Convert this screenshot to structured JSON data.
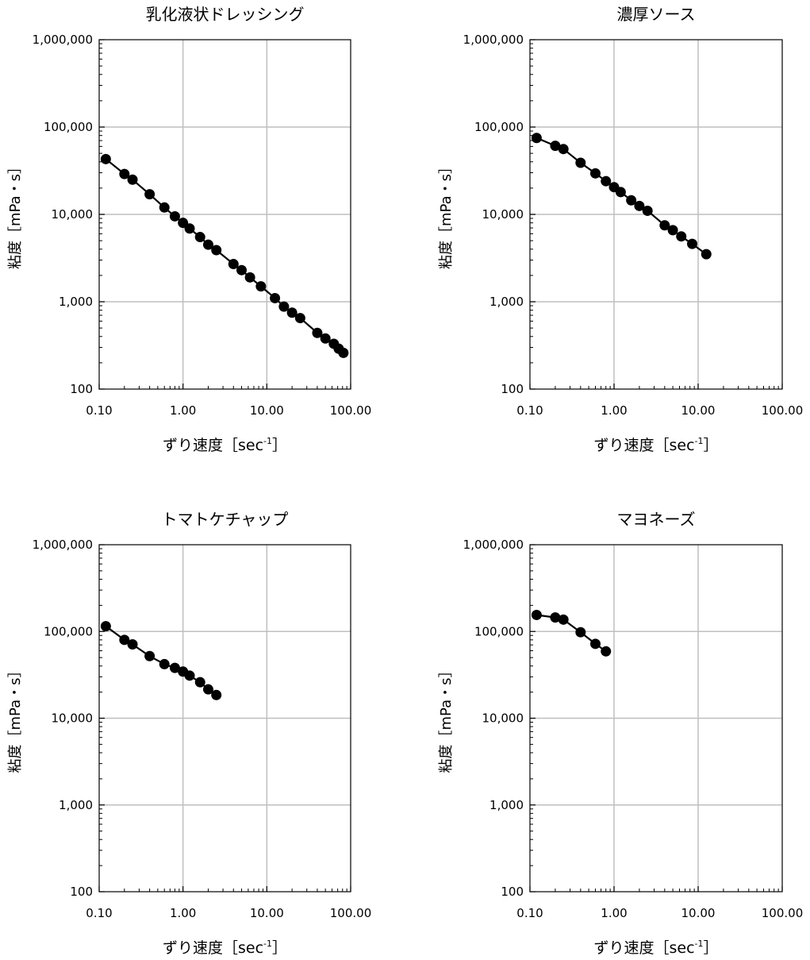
{
  "chart_data": [
    {
      "type": "scatter",
      "title": "乳化液状ドレッシング",
      "xlabel": "ずり速度［sec",
      "xlabel_sup": "-1",
      "xlabel_end": "］",
      "ylabel": "粘度［mPa・s］",
      "xscale": "log",
      "yscale": "log",
      "xlim": [
        0.1,
        100
      ],
      "ylim": [
        100,
        1000000
      ],
      "xticks": [
        "0.10",
        "1.00",
        "10.00",
        "100.00"
      ],
      "yticks": [
        "100",
        "1,000",
        "10,000",
        "100,000",
        "1,000,000"
      ],
      "grid": true,
      "marker_color": "#000000",
      "points": [
        {
          "x": 0.12,
          "y": 43000
        },
        {
          "x": 0.2,
          "y": 29000
        },
        {
          "x": 0.25,
          "y": 25000
        },
        {
          "x": 0.4,
          "y": 17000
        },
        {
          "x": 0.6,
          "y": 12000
        },
        {
          "x": 0.8,
          "y": 9500
        },
        {
          "x": 1.0,
          "y": 8000
        },
        {
          "x": 1.2,
          "y": 6900
        },
        {
          "x": 1.6,
          "y": 5500
        },
        {
          "x": 2.0,
          "y": 4500
        },
        {
          "x": 2.5,
          "y": 3900
        },
        {
          "x": 4.0,
          "y": 2700
        },
        {
          "x": 5.0,
          "y": 2300
        },
        {
          "x": 6.3,
          "y": 1900
        },
        {
          "x": 8.5,
          "y": 1500
        },
        {
          "x": 12.5,
          "y": 1100
        },
        {
          "x": 16,
          "y": 880
        },
        {
          "x": 20,
          "y": 750
        },
        {
          "x": 25,
          "y": 650
        },
        {
          "x": 40,
          "y": 440
        },
        {
          "x": 50,
          "y": 380
        },
        {
          "x": 63,
          "y": 330
        },
        {
          "x": 72,
          "y": 290
        },
        {
          "x": 82,
          "y": 260
        }
      ]
    },
    {
      "type": "scatter",
      "title": "濃厚ソース",
      "xlabel": "ずり速度［sec",
      "xlabel_sup": "-1",
      "xlabel_end": "］",
      "ylabel": "粘度［mPa・s］",
      "xscale": "log",
      "yscale": "log",
      "xlim": [
        0.1,
        100
      ],
      "ylim": [
        100,
        1000000
      ],
      "xticks": [
        "0.10",
        "1.00",
        "10.00",
        "100.00"
      ],
      "yticks": [
        "100",
        "1,000",
        "10,000",
        "100,000",
        "1,000,000"
      ],
      "grid": true,
      "marker_color": "#000000",
      "points": [
        {
          "x": 0.12,
          "y": 75000
        },
        {
          "x": 0.2,
          "y": 61000
        },
        {
          "x": 0.25,
          "y": 56000
        },
        {
          "x": 0.4,
          "y": 39000
        },
        {
          "x": 0.6,
          "y": 29500
        },
        {
          "x": 0.8,
          "y": 24000
        },
        {
          "x": 1.0,
          "y": 20500
        },
        {
          "x": 1.2,
          "y": 18000
        },
        {
          "x": 1.6,
          "y": 14500
        },
        {
          "x": 2.0,
          "y": 12500
        },
        {
          "x": 2.5,
          "y": 11000
        },
        {
          "x": 4.0,
          "y": 7500
        },
        {
          "x": 5.0,
          "y": 6600
        },
        {
          "x": 6.3,
          "y": 5600
        },
        {
          "x": 8.5,
          "y": 4600
        },
        {
          "x": 12.5,
          "y": 3500
        }
      ]
    },
    {
      "type": "scatter",
      "title": "トマトケチャップ",
      "xlabel": "ずり速度［sec",
      "xlabel_sup": "-1",
      "xlabel_end": "］",
      "ylabel": "粘度［mPa・s］",
      "xscale": "log",
      "yscale": "log",
      "xlim": [
        0.1,
        100
      ],
      "ylim": [
        100,
        1000000
      ],
      "xticks": [
        "0.10",
        "1.00",
        "10.00",
        "100.00"
      ],
      "yticks": [
        "100",
        "1,000",
        "10,000",
        "100,000",
        "1,000,000"
      ],
      "grid": true,
      "marker_color": "#000000",
      "points": [
        {
          "x": 0.12,
          "y": 115000
        },
        {
          "x": 0.2,
          "y": 80000
        },
        {
          "x": 0.25,
          "y": 71000
        },
        {
          "x": 0.4,
          "y": 52000
        },
        {
          "x": 0.6,
          "y": 42000
        },
        {
          "x": 0.8,
          "y": 38000
        },
        {
          "x": 1.0,
          "y": 34500
        },
        {
          "x": 1.2,
          "y": 31000
        },
        {
          "x": 1.6,
          "y": 26000
        },
        {
          "x": 2.0,
          "y": 21500
        },
        {
          "x": 2.5,
          "y": 18500
        }
      ]
    },
    {
      "type": "scatter",
      "title": "マヨネーズ",
      "xlabel": "ずり速度［sec",
      "xlabel_sup": "-1",
      "xlabel_end": "］",
      "ylabel": "粘度［mPa・s］",
      "xscale": "log",
      "yscale": "log",
      "xlim": [
        0.1,
        100
      ],
      "ylim": [
        100,
        1000000
      ],
      "xticks": [
        "0.10",
        "1.00",
        "10.00",
        "100.00"
      ],
      "yticks": [
        "100",
        "1,000",
        "10,000",
        "100,000",
        "1,000,000"
      ],
      "grid": true,
      "marker_color": "#000000",
      "points": [
        {
          "x": 0.12,
          "y": 155000
        },
        {
          "x": 0.2,
          "y": 145000
        },
        {
          "x": 0.25,
          "y": 137000
        },
        {
          "x": 0.4,
          "y": 98000
        },
        {
          "x": 0.6,
          "y": 72000
        },
        {
          "x": 0.8,
          "y": 59000
        }
      ]
    }
  ]
}
